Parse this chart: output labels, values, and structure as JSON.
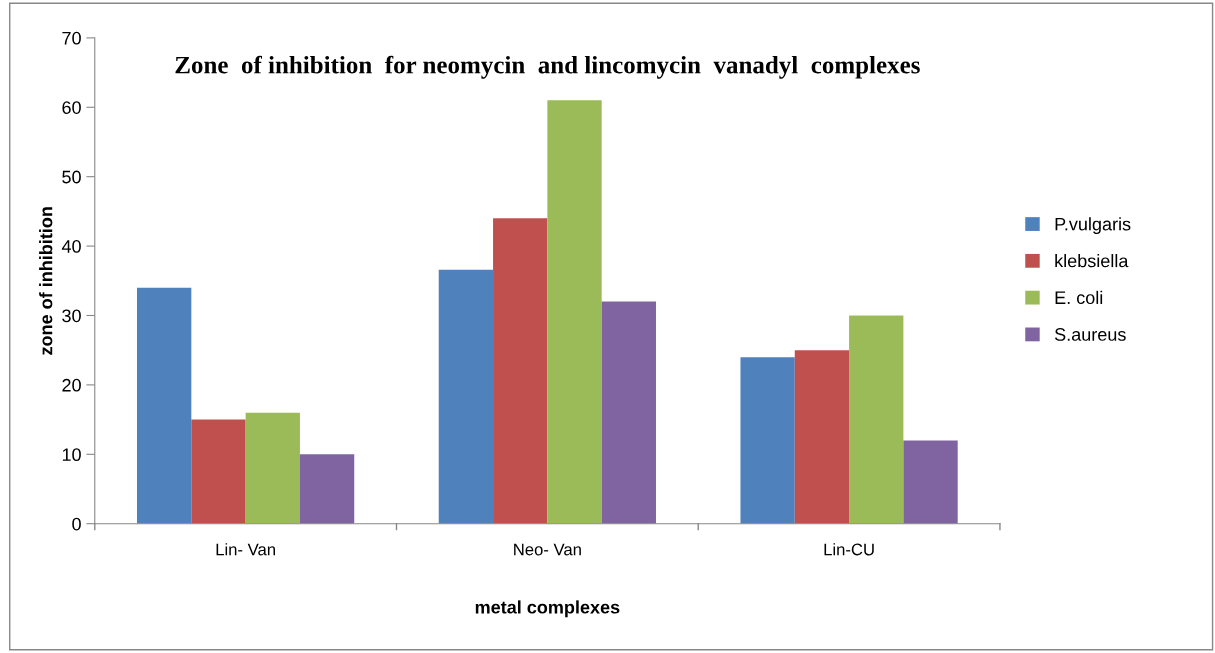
{
  "chart_data": {
    "type": "bar",
    "title": "Zone  of inhibition  for neomycin  and lincomycin  vanadyl  complexes",
    "xlabel": "metal complexes",
    "ylabel": "zone of inhibition",
    "categories": [
      "Lin- Van",
      "Neo- Van",
      "Lin-CU"
    ],
    "series": [
      {
        "name": "P.vulgaris",
        "color": "#4f81bd",
        "values": [
          34,
          36.6,
          24
        ]
      },
      {
        "name": "klebsiella",
        "color": "#c0504d",
        "values": [
          15,
          44,
          25
        ]
      },
      {
        "name": "E. coli",
        "color": "#9bbb59",
        "values": [
          16,
          61,
          30
        ]
      },
      {
        "name": "S.aureus",
        "color": "#8064a2",
        "values": [
          10,
          32,
          12
        ]
      }
    ],
    "ylim": [
      0,
      70
    ],
    "yticks": [
      0,
      10,
      20,
      30,
      40,
      50,
      60,
      70
    ],
    "grid": false,
    "legend": "right"
  }
}
